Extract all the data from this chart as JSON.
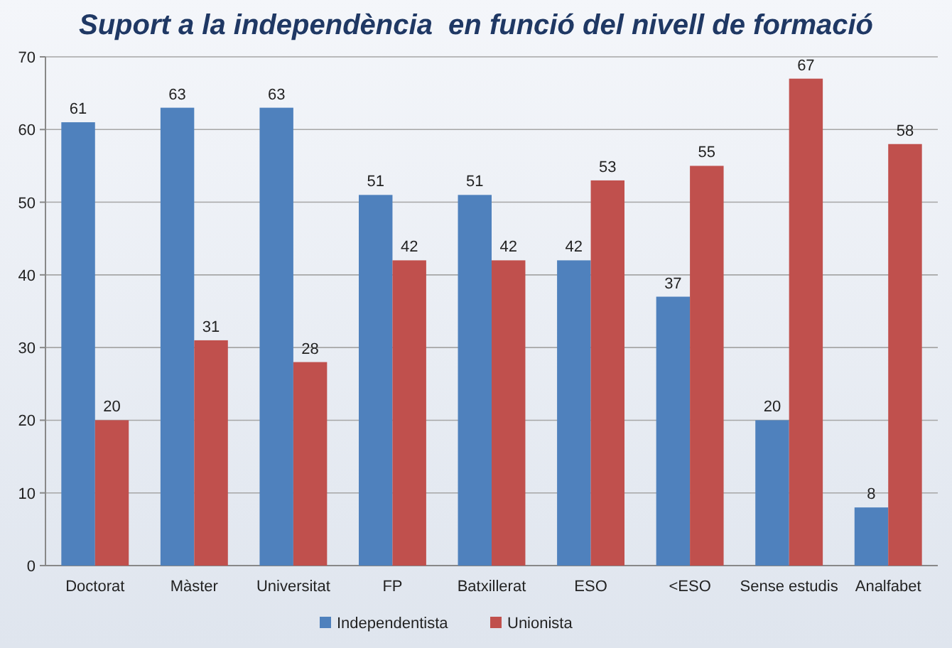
{
  "chart_data": {
    "type": "bar",
    "title": "Suport a la independència  en funció del nivell de formació",
    "categories": [
      "Doctorat",
      "Màster",
      "Universitat",
      "FP",
      "Batxillerat",
      "ESO",
      "<ESO",
      "Sense estudis",
      "Analfabet"
    ],
    "series": [
      {
        "name": "Independentista",
        "color": "#4f81bd",
        "values": [
          61,
          63,
          63,
          51,
          51,
          42,
          37,
          20,
          8
        ]
      },
      {
        "name": "Unionista",
        "color": "#c0504d",
        "values": [
          20,
          31,
          28,
          42,
          42,
          53,
          55,
          67,
          58
        ]
      }
    ],
    "ylim": [
      0,
      70
    ],
    "yticks": [
      0,
      10,
      20,
      30,
      40,
      50,
      60,
      70
    ],
    "grid": "y",
    "legend": "bottom",
    "data_labels": true
  }
}
